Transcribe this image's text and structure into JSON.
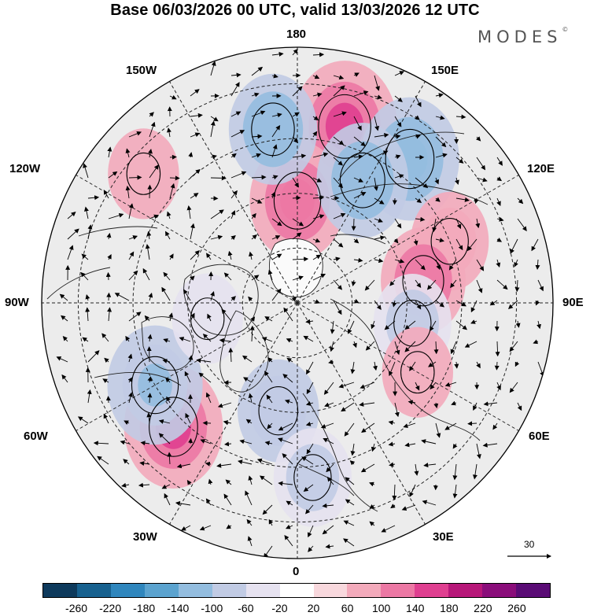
{
  "title": "Base 06/03/2026 00 UTC, valid 13/03/2026 12 UTC",
  "brand": "MODES",
  "brand_mark": "©",
  "map_labels": {
    "lon_180": "180",
    "lon_150w": "150W",
    "lon_150e": "150E",
    "lon_120w": "120W",
    "lon_120e": "120E",
    "lon_90w": "90W",
    "lon_90e": "90E",
    "lon_60w": "60W",
    "lon_60e": "60E",
    "lon_30w": "30W",
    "lon_30e": "30E",
    "lon_0": "0"
  },
  "reference_vector": "30",
  "legend": {
    "colors": [
      "#0e3a5c",
      "#17618f",
      "#2f86bd",
      "#5ba3cf",
      "#93bddf",
      "#c1cbe4",
      "#e6e2f0",
      "#ffffff",
      "#f8d8dd",
      "#f3aabb",
      "#ec78a4",
      "#df3f90",
      "#b71779",
      "#8a0d7a",
      "#5a0b75"
    ],
    "labels": [
      "-260",
      "-220",
      "-180",
      "-140",
      "-100",
      "-60",
      "-20",
      "20",
      "60",
      "100",
      "140",
      "180",
      "220",
      "260"
    ]
  },
  "anomaly_centers": [
    {
      "lon": 165,
      "lat": 40,
      "value": 160
    },
    {
      "lon": 180,
      "lat": 62,
      "value": 130
    },
    {
      "lon": -172,
      "lat": 42,
      "value": -110
    },
    {
      "lon": 142,
      "lat": 40,
      "value": -140
    },
    {
      "lon": 152,
      "lat": 52,
      "value": -120
    },
    {
      "lon": 112,
      "lat": 45,
      "value": 80
    },
    {
      "lon": 100,
      "lat": 55,
      "value": 100
    },
    {
      "lon": 80,
      "lat": 58,
      "value": -80
    },
    {
      "lon": -45,
      "lat": 42,
      "value": 140
    },
    {
      "lon": -60,
      "lat": 45,
      "value": -130
    },
    {
      "lon": -10,
      "lat": 60,
      "value": -90
    },
    {
      "lon": 5,
      "lat": 42,
      "value": -80
    },
    {
      "lon": 60,
      "lat": 52,
      "value": 60
    },
    {
      "lon": -130,
      "lat": 35,
      "value": 60
    },
    {
      "lon": -80,
      "lat": 65,
      "value": -60
    }
  ]
}
